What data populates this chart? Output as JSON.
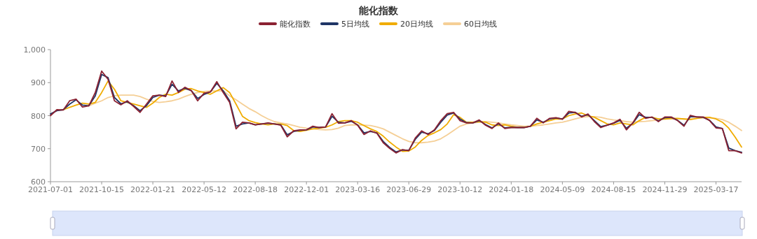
{
  "chart_data": {
    "type": "line",
    "title": "能化指数",
    "legend": "top",
    "grid": false,
    "ylim": [
      600,
      1000
    ],
    "yticks": [
      600,
      700,
      800,
      900,
      {
        "value": 1000,
        "label": "1,000"
      }
    ],
    "categories": [
      "2021-07-01",
      null,
      null,
      null,
      null,
      null,
      null,
      null,
      "2021-10-15",
      null,
      null,
      null,
      null,
      null,
      null,
      null,
      "2022-01-21",
      null,
      null,
      null,
      null,
      null,
      null,
      null,
      "2022-05-12",
      null,
      null,
      null,
      null,
      null,
      null,
      null,
      "2022-08-18",
      null,
      null,
      null,
      null,
      null,
      null,
      null,
      "2022-12-01",
      null,
      null,
      null,
      null,
      null,
      null,
      null,
      "2023-03-16",
      null,
      null,
      null,
      null,
      null,
      null,
      null,
      "2023-06-29",
      null,
      null,
      null,
      null,
      null,
      null,
      null,
      "2023-10-12",
      null,
      null,
      null,
      null,
      null,
      null,
      null,
      "2024-01-18",
      null,
      null,
      null,
      null,
      null,
      null,
      null,
      "2024-05-09",
      null,
      null,
      null,
      null,
      null,
      null,
      null,
      "2024-08-15",
      null,
      null,
      null,
      null,
      null,
      null,
      null,
      "2024-11-29",
      null,
      null,
      null,
      null,
      null,
      null,
      null,
      "2025-03-17",
      null,
      null,
      null,
      null
    ],
    "series": [
      {
        "name": "能化指数",
        "color": "#8b2232",
        "values": [
          800,
          818,
          817,
          845,
          850,
          826,
          830,
          870,
          935,
          910,
          845,
          833,
          845,
          828,
          810,
          835,
          860,
          862,
          858,
          905,
          870,
          886,
          876,
          845,
          868,
          872,
          903,
          870,
          840,
          760,
          780,
          778,
          772,
          775,
          778,
          775,
          771,
          736,
          754,
          757,
          757,
          768,
          764,
          766,
          806,
          777,
          778,
          785,
          771,
          743,
          754,
          747,
          718,
          701,
          687,
          697,
          694,
          732,
          754,
          743,
          757,
          785,
          806,
          810,
          785,
          778,
          778,
          787,
          771,
          761,
          778,
          761,
          764,
          764,
          764,
          768,
          792,
          778,
          792,
          794,
          789,
          813,
          810,
          796,
          805,
          782,
          764,
          771,
          778,
          789,
          757,
          778,
          810,
          792,
          796,
          782,
          796,
          796,
          785,
          768,
          801,
          796,
          796,
          785,
          763,
          761,
          694,
          694,
          687
        ]
      },
      {
        "name": "5日均线",
        "color": "#1f3566",
        "values": [
          805,
          815,
          818,
          835,
          848,
          832,
          830,
          860,
          925,
          915,
          855,
          836,
          842,
          830,
          815,
          830,
          855,
          862,
          860,
          895,
          875,
          883,
          876,
          852,
          864,
          872,
          898,
          875,
          845,
          768,
          775,
          778,
          772,
          775,
          777,
          775,
          772,
          742,
          752,
          756,
          757,
          766,
          764,
          766,
          798,
          780,
          778,
          783,
          772,
          748,
          752,
          748,
          722,
          704,
          690,
          696,
          695,
          728,
          750,
          745,
          755,
          780,
          802,
          808,
          790,
          779,
          778,
          785,
          773,
          763,
          775,
          763,
          765,
          764,
          764,
          768,
          787,
          780,
          790,
          793,
          790,
          808,
          810,
          798,
          803,
          785,
          767,
          771,
          777,
          786,
          762,
          777,
          803,
          795,
          795,
          784,
          794,
          795,
          786,
          771,
          797,
          796,
          795,
          786,
          766,
          761,
          702,
          694,
          689
        ]
      },
      {
        "name": "20日均线",
        "color": "#f0ac00",
        "values": [
          null,
          null,
          818,
          825,
          832,
          838,
          835,
          840,
          870,
          905,
          880,
          845,
          840,
          835,
          830,
          825,
          838,
          855,
          865,
          862,
          870,
          880,
          882,
          875,
          870,
          865,
          875,
          885,
          870,
          835,
          798,
          785,
          779,
          775,
          772,
          775,
          775,
          770,
          755,
          752,
          756,
          760,
          762,
          765,
          772,
          782,
          785,
          785,
          780,
          770,
          760,
          752,
          738,
          720,
          705,
          692,
          693,
          705,
          725,
          740,
          748,
          758,
          775,
          803,
          795,
          780,
          780,
          782,
          780,
          772,
          770,
          772,
          768,
          765,
          765,
          768,
          775,
          780,
          785,
          790,
          790,
          800,
          805,
          808,
          800,
          795,
          785,
          775,
          772,
          778,
          775,
          772,
          785,
          795,
          795,
          790,
          790,
          792,
          792,
          790,
          788,
          792,
          795,
          795,
          790,
          780,
          762,
          735,
          705
        ]
      },
      {
        "name": "60日均线",
        "color": "#f5cf96",
        "values": [
          null,
          null,
          null,
          null,
          null,
          null,
          830,
          838,
          845,
          855,
          860,
          862,
          862,
          862,
          858,
          850,
          843,
          840,
          842,
          845,
          850,
          858,
          865,
          870,
          873,
          875,
          875,
          875,
          860,
          848,
          835,
          822,
          812,
          800,
          790,
          782,
          778,
          775,
          770,
          765,
          762,
          760,
          758,
          757,
          758,
          762,
          770,
          772,
          772,
          771,
          770,
          766,
          760,
          750,
          740,
          730,
          722,
          718,
          718,
          720,
          723,
          730,
          742,
          755,
          768,
          775,
          778,
          780,
          782,
          780,
          778,
          775,
          772,
          770,
          768,
          768,
          770,
          772,
          775,
          778,
          780,
          785,
          790,
          795,
          797,
          797,
          795,
          790,
          787,
          785,
          782,
          780,
          782,
          783,
          785,
          787,
          790,
          790,
          790,
          790,
          790,
          792,
          793,
          793,
          792,
          788,
          780,
          768,
          755
        ]
      }
    ]
  }
}
